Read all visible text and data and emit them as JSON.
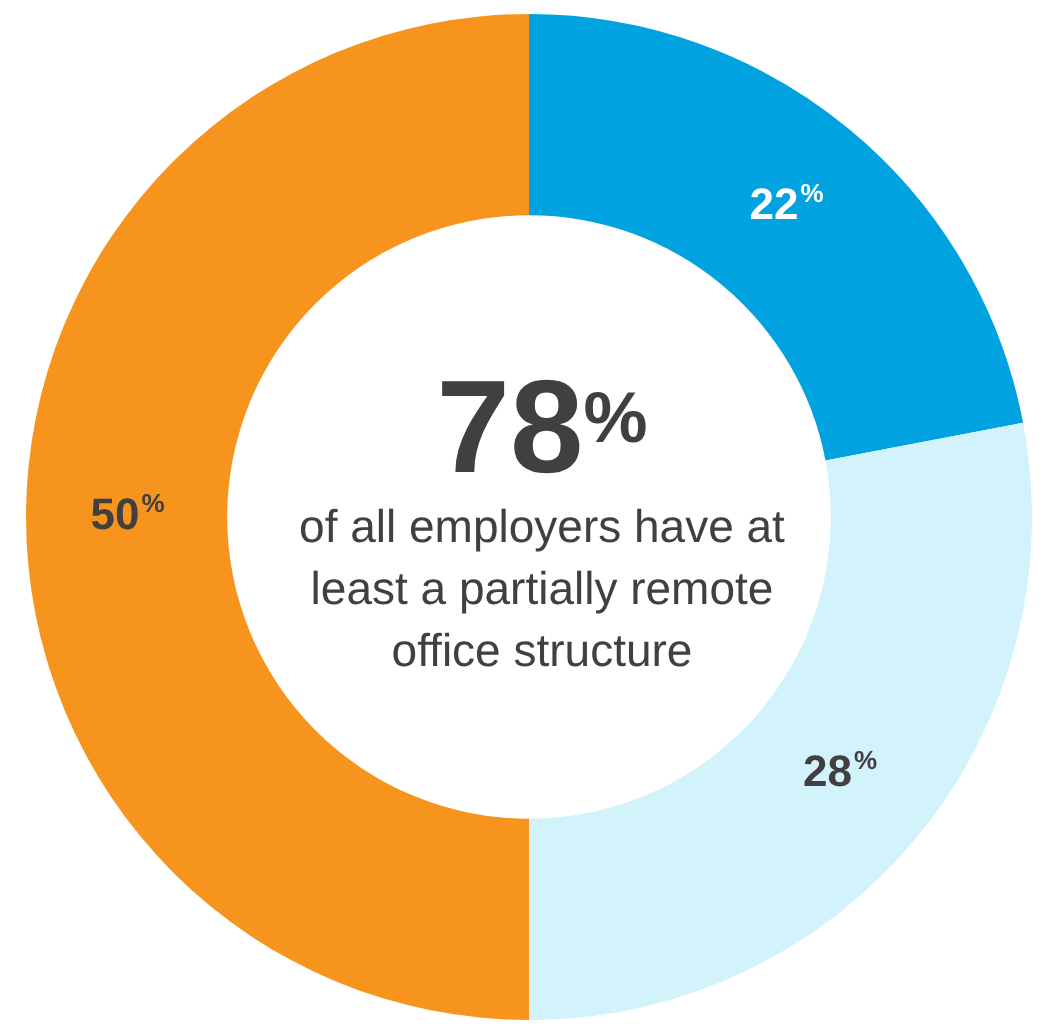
{
  "chart_data": {
    "type": "donut",
    "categories": [
      null,
      null,
      null
    ],
    "values": [
      22,
      28,
      50
    ],
    "colors": [
      "#00a3e0",
      "#d2f2fc",
      "#f7941d"
    ],
    "value_labels": [
      "22$^{%}$",
      "28$^{%}$",
      "50$^{%}$"
    ],
    "annotations": [
      "78$^{%}$",
      "of all employers have at least a partially remote office structure"
    ]
  }
}
